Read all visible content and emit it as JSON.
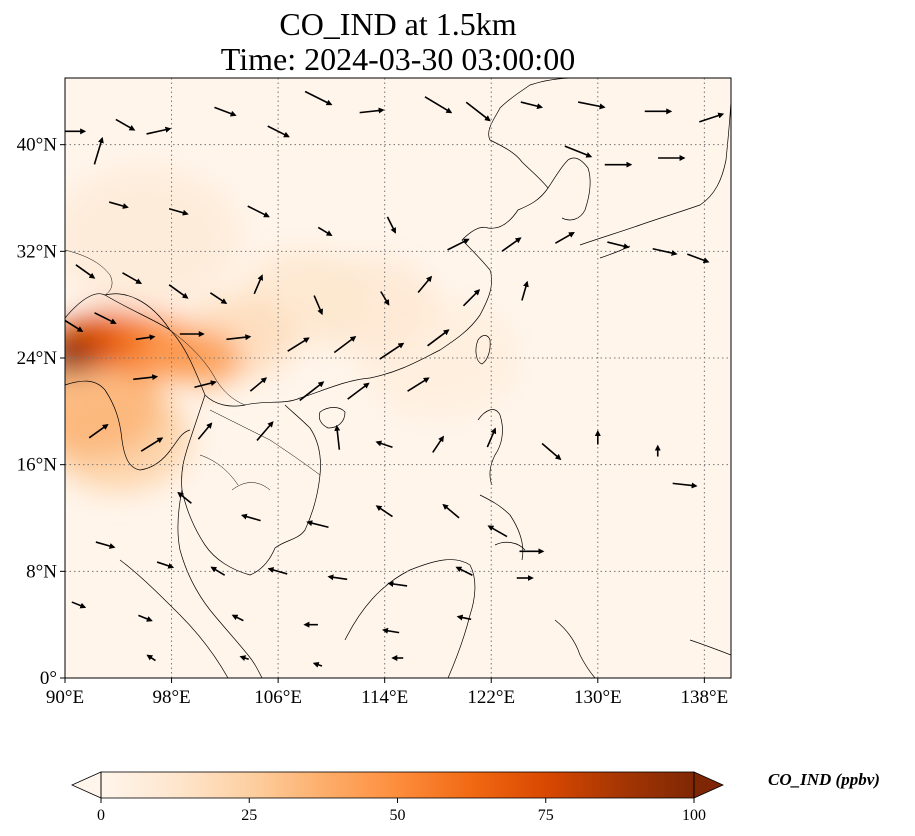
{
  "title_line1": "CO_IND at 1.5km",
  "title_line2": "Time: 2024-03-30 03:00:00",
  "map": {
    "lon_range": [
      90,
      140
    ],
    "lat_range": [
      0,
      45
    ],
    "lon_ticks": [
      {
        "value": 90,
        "label": "90°E"
      },
      {
        "value": 98,
        "label": "98°E"
      },
      {
        "value": 106,
        "label": "106°E"
      },
      {
        "value": 114,
        "label": "114°E"
      },
      {
        "value": 122,
        "label": "122°E"
      },
      {
        "value": 130,
        "label": "130°E"
      },
      {
        "value": 138,
        "label": "138°E"
      }
    ],
    "lat_ticks": [
      {
        "value": 0,
        "label": "0°"
      },
      {
        "value": 8,
        "label": "8°N"
      },
      {
        "value": 16,
        "label": "16°N"
      },
      {
        "value": 24,
        "label": "24°N"
      },
      {
        "value": 32,
        "label": "32°N"
      },
      {
        "value": 40,
        "label": "40°N"
      }
    ],
    "gridlines": true,
    "plume": [
      {
        "lon": 90.3,
        "lat": 24.2,
        "r": 1.6,
        "v": 100
      },
      {
        "lon": 91.5,
        "lat": 25.0,
        "r": 2.2,
        "v": 75
      },
      {
        "lon": 93.5,
        "lat": 25.5,
        "r": 2.5,
        "v": 60
      },
      {
        "lon": 96.5,
        "lat": 24.8,
        "r": 2.8,
        "v": 50
      },
      {
        "lon": 100.5,
        "lat": 24.0,
        "r": 2.3,
        "v": 45
      },
      {
        "lon": 103.0,
        "lat": 25.5,
        "r": 3.5,
        "v": 18
      },
      {
        "lon": 92.0,
        "lat": 20.5,
        "r": 4.5,
        "v": 35
      },
      {
        "lon": 94.0,
        "lat": 18.0,
        "r": 4.5,
        "v": 25
      },
      {
        "lon": 108.0,
        "lat": 28.5,
        "r": 4.0,
        "v": 12
      },
      {
        "lon": 113.0,
        "lat": 28.0,
        "r": 4.0,
        "v": 10
      },
      {
        "lon": 96.0,
        "lat": 33.0,
        "r": 6.0,
        "v": 8
      },
      {
        "lon": 118.0,
        "lat": 24.0,
        "r": 5.0,
        "v": 6
      }
    ],
    "wind_vectors": [
      [
        90.5,
        41.0,
        1.0,
        0.0
      ],
      [
        92.5,
        39.5,
        0.3,
        1.0
      ],
      [
        94.5,
        41.5,
        0.7,
        -0.4
      ],
      [
        97.0,
        41.0,
        0.9,
        0.2
      ],
      [
        102.0,
        42.5,
        0.8,
        -0.3
      ],
      [
        106.0,
        41.0,
        0.8,
        -0.4
      ],
      [
        109.0,
        43.5,
        1.0,
        -0.5
      ],
      [
        113.0,
        42.5,
        0.9,
        0.1
      ],
      [
        118.0,
        43.0,
        1.0,
        -0.6
      ],
      [
        121.0,
        42.5,
        0.9,
        -0.7
      ],
      [
        125.0,
        43.0,
        0.8,
        -0.2
      ],
      [
        129.5,
        43.0,
        1.0,
        -0.2
      ],
      [
        134.5,
        42.5,
        1.0,
        0.0
      ],
      [
        138.5,
        42.0,
        0.9,
        0.3
      ],
      [
        128.5,
        39.5,
        1.0,
        -0.4
      ],
      [
        131.5,
        38.5,
        1.0,
        0.0
      ],
      [
        135.5,
        39.0,
        1.0,
        0.0
      ],
      [
        94.0,
        35.5,
        0.7,
        -0.2
      ],
      [
        98.5,
        35.0,
        0.7,
        -0.2
      ],
      [
        104.5,
        35.0,
        0.8,
        -0.4
      ],
      [
        109.5,
        33.5,
        0.5,
        -0.3
      ],
      [
        114.5,
        34.0,
        0.3,
        -0.6
      ],
      [
        119.5,
        32.5,
        0.8,
        0.4
      ],
      [
        123.5,
        32.5,
        0.7,
        0.5
      ],
      [
        127.5,
        33.0,
        0.7,
        0.4
      ],
      [
        131.5,
        32.5,
        0.8,
        -0.2
      ],
      [
        135.0,
        32.0,
        0.9,
        -0.2
      ],
      [
        137.5,
        31.5,
        0.8,
        -0.3
      ],
      [
        91.5,
        30.5,
        0.7,
        -0.5
      ],
      [
        95.0,
        30.0,
        0.7,
        -0.4
      ],
      [
        98.5,
        29.0,
        0.7,
        -0.5
      ],
      [
        101.5,
        28.5,
        0.6,
        -0.4
      ],
      [
        104.5,
        29.5,
        0.3,
        0.7
      ],
      [
        109.0,
        28.0,
        0.3,
        -0.7
      ],
      [
        114.0,
        28.5,
        0.3,
        -0.5
      ],
      [
        117.0,
        29.5,
        0.5,
        0.6
      ],
      [
        120.5,
        28.5,
        0.6,
        0.6
      ],
      [
        124.5,
        29.0,
        0.2,
        0.7
      ],
      [
        90.5,
        26.5,
        0.8,
        -0.5
      ],
      [
        93.0,
        27.0,
        0.8,
        -0.4
      ],
      [
        96.0,
        25.5,
        0.7,
        0.1
      ],
      [
        99.5,
        25.8,
        0.9,
        0.0
      ],
      [
        103.0,
        25.5,
        0.9,
        0.1
      ],
      [
        107.5,
        25.0,
        0.8,
        0.5
      ],
      [
        111.0,
        25.0,
        0.8,
        0.6
      ],
      [
        114.5,
        24.5,
        0.9,
        0.6
      ],
      [
        118.0,
        25.5,
        0.8,
        0.6
      ],
      [
        96.0,
        22.5,
        0.9,
        0.1
      ],
      [
        100.5,
        22.0,
        0.8,
        0.2
      ],
      [
        104.5,
        22.0,
        0.6,
        0.5
      ],
      [
        108.5,
        21.5,
        0.9,
        0.7
      ],
      [
        112.0,
        21.5,
        0.8,
        0.6
      ],
      [
        116.5,
        22.0,
        0.8,
        0.5
      ],
      [
        92.5,
        18.5,
        0.7,
        0.5
      ],
      [
        96.5,
        17.5,
        0.8,
        0.5
      ],
      [
        100.5,
        18.5,
        0.5,
        0.6
      ],
      [
        105.0,
        18.5,
        0.6,
        0.7
      ],
      [
        110.5,
        18.0,
        -0.1,
        0.9
      ],
      [
        114.0,
        17.5,
        -0.6,
        0.2
      ],
      [
        118.0,
        17.5,
        0.4,
        0.6
      ],
      [
        122.0,
        18.0,
        0.3,
        0.7
      ],
      [
        126.5,
        17.0,
        0.7,
        -0.6
      ],
      [
        130.0,
        18.0,
        0.0,
        0.5
      ],
      [
        134.5,
        17.0,
        0.0,
        0.4
      ],
      [
        136.5,
        14.5,
        0.9,
        -0.1
      ],
      [
        99.0,
        13.5,
        -0.5,
        0.4
      ],
      [
        104.0,
        12.0,
        -0.7,
        0.2
      ],
      [
        109.0,
        11.5,
        -0.8,
        0.2
      ],
      [
        114.0,
        12.5,
        -0.6,
        0.4
      ],
      [
        119.0,
        12.5,
        -0.6,
        0.5
      ],
      [
        122.5,
        11.0,
        -0.7,
        0.4
      ],
      [
        125.0,
        9.5,
        0.9,
        0.0
      ],
      [
        93.0,
        10.0,
        0.7,
        -0.2
      ],
      [
        97.5,
        8.5,
        0.6,
        -0.2
      ],
      [
        101.5,
        8.0,
        -0.5,
        0.3
      ],
      [
        106.0,
        8.0,
        -0.7,
        0.2
      ],
      [
        110.5,
        7.5,
        -0.7,
        0.1
      ],
      [
        115.0,
        7.0,
        -0.7,
        0.1
      ],
      [
        120.0,
        8.0,
        -0.6,
        0.3
      ],
      [
        124.5,
        7.5,
        0.6,
        0.0
      ],
      [
        91.0,
        5.5,
        0.5,
        -0.2
      ],
      [
        96.0,
        4.5,
        0.5,
        -0.2
      ],
      [
        103.0,
        4.5,
        -0.4,
        0.2
      ],
      [
        108.5,
        4.0,
        -0.5,
        0.0
      ],
      [
        114.5,
        3.5,
        -0.6,
        0.1
      ],
      [
        120.0,
        4.5,
        -0.5,
        0.1
      ],
      [
        96.5,
        1.5,
        -0.3,
        0.2
      ],
      [
        103.5,
        1.5,
        -0.3,
        0.1
      ],
      [
        109.0,
        1.0,
        -0.3,
        0.1
      ],
      [
        115.0,
        1.5,
        -0.4,
        0.0
      ]
    ]
  },
  "colorbar": {
    "colormap": [
      "#fff5eb",
      "#fee6ce",
      "#fdd0a2",
      "#fdae6b",
      "#fd8d3c",
      "#f16913",
      "#d94801",
      "#a63603",
      "#7f2704"
    ],
    "min": 0,
    "max": 100,
    "ticks": [
      {
        "value": 0,
        "label": "0"
      },
      {
        "value": 25,
        "label": "25"
      },
      {
        "value": 50,
        "label": "50"
      },
      {
        "value": 75,
        "label": "75"
      },
      {
        "value": 100,
        "label": "100"
      }
    ],
    "extend": "both",
    "label": "CO_IND (ppbv)"
  }
}
